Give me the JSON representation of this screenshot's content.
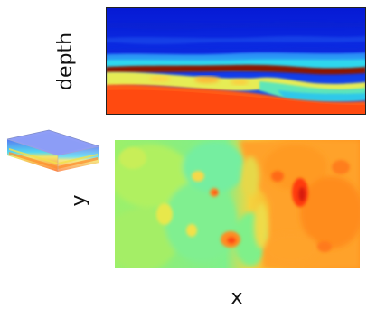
{
  "labels": {
    "depth": "depth",
    "y": "y",
    "x": "x"
  },
  "colors": {
    "deep_blue": "#0a1fd8",
    "blue": "#1f5cf2",
    "cyan": "#26d4ee",
    "green": "#7ff07a",
    "yellow": "#f5e24a",
    "orange": "#ff9a1e",
    "red_orange": "#ff4a14",
    "dark_red": "#8e1606"
  },
  "panels": {
    "cross_section": "depth-slice-seismic-section",
    "map": "horizon-map-slice",
    "thumbnail": "3d-volume-thumbnail"
  }
}
